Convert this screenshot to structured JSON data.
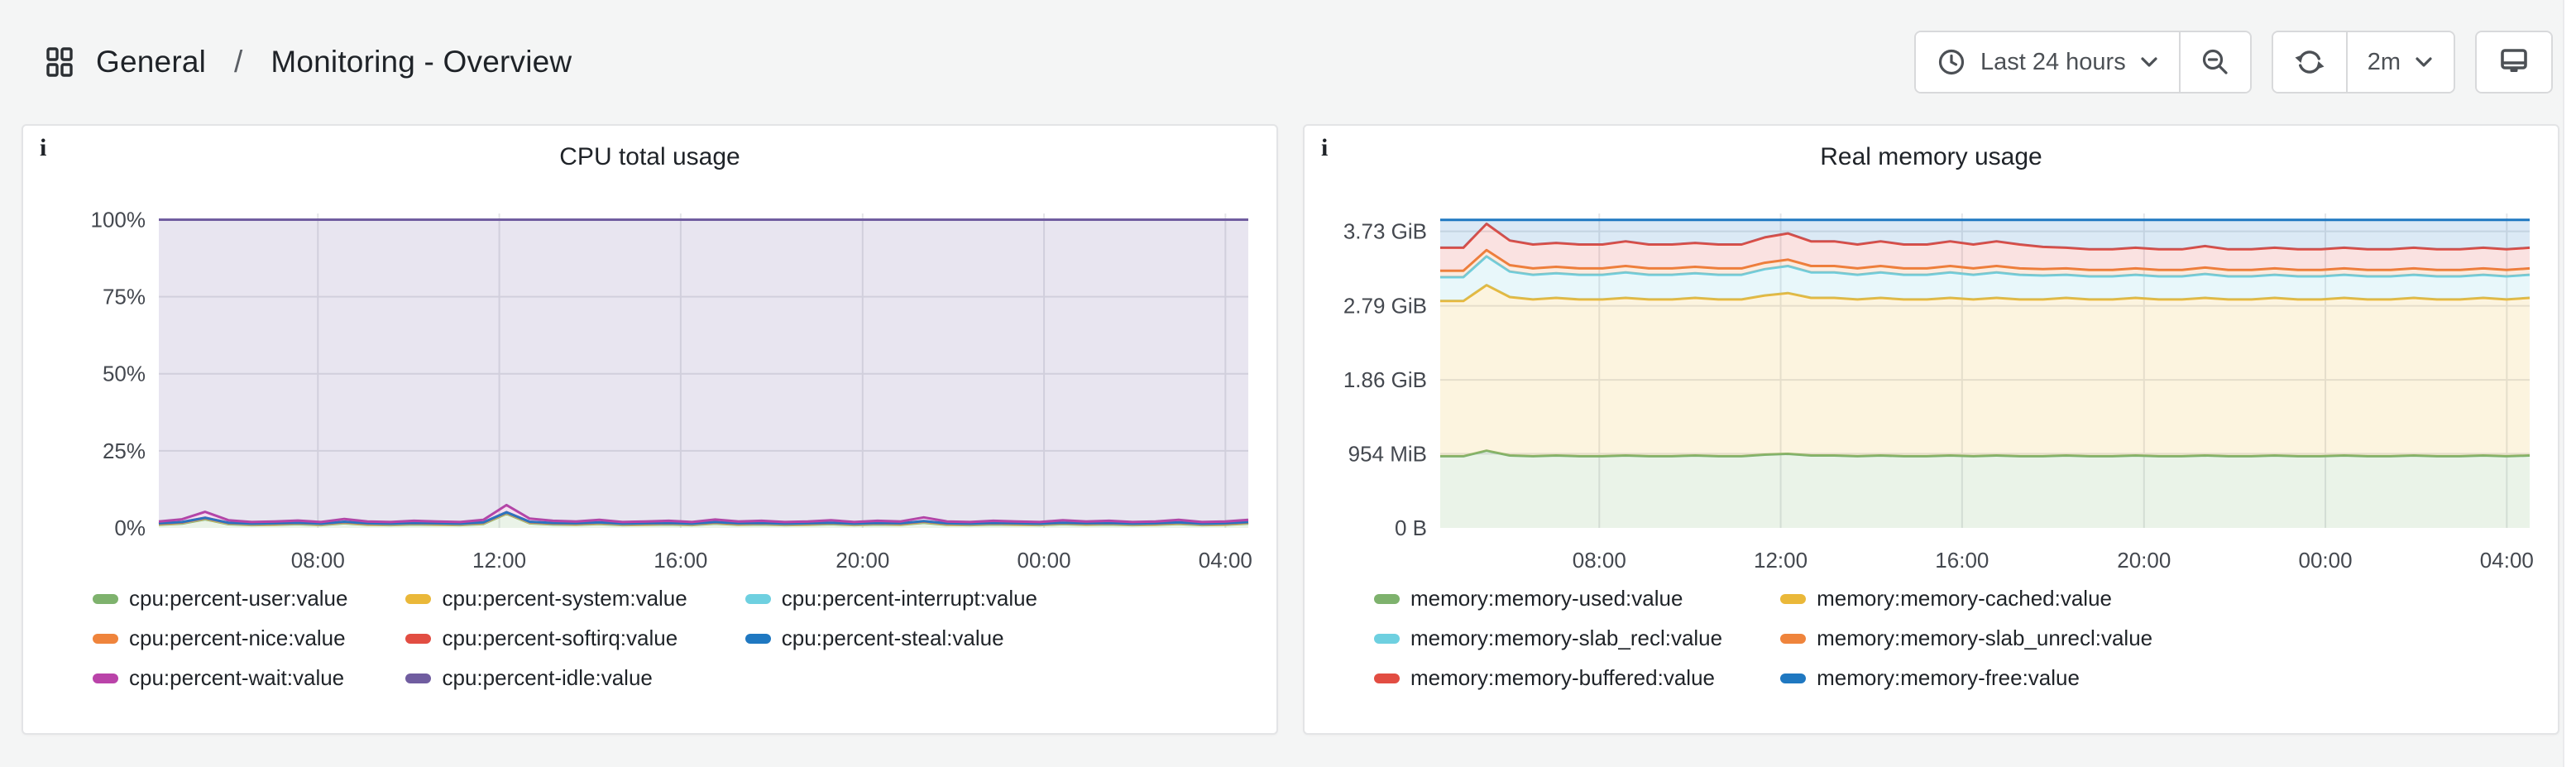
{
  "ui": {
    "info_glyph": "i"
  },
  "header": {
    "breadcrumb": {
      "folder": "General",
      "separator": "/",
      "page": "Monitoring - Overview",
      "icon": "apps-grid-icon"
    },
    "toolbar": {
      "time_range_label": "Last 24 hours",
      "time_range_icon": "clock-icon",
      "zoom_out_icon": "zoom-out-icon",
      "refresh_icon": "refresh-icon",
      "refresh_interval_label": "2m",
      "kiosk_icon": "monitor-icon",
      "chevron_icon": "chevron-down-icon"
    }
  },
  "colors": {
    "page_bg": "#f4f5f5",
    "panel_bg": "#ffffff",
    "panel_border": "#e3e4e6",
    "grid_line": "#e4e5e8",
    "tick_text": "#44484f"
  },
  "chart_data": [
    {
      "type": "area",
      "stacked": true,
      "title": "CPU total usage",
      "legend_position": "bottom",
      "legend_columns": 3,
      "grid": true,
      "y_max": 102,
      "y_ticks": [
        {
          "label": "0%",
          "v": 0
        },
        {
          "label": "25%",
          "v": 25
        },
        {
          "label": "50%",
          "v": 50
        },
        {
          "label": "75%",
          "v": 75
        },
        {
          "label": "100%",
          "v": 100
        }
      ],
      "x_ticks": [
        {
          "label": "08:00",
          "f": 0.146
        },
        {
          "label": "12:00",
          "f": 0.3125
        },
        {
          "label": "16:00",
          "f": 0.479
        },
        {
          "label": "20:00",
          "f": 0.646
        },
        {
          "label": "00:00",
          "f": 0.8125
        },
        {
          "label": "04:00",
          "f": 0.979
        }
      ],
      "series": [
        {
          "name": "cpu:percent-user:value",
          "color": "#7EB26D",
          "values": [
            1.0,
            1.4,
            2.8,
            1.2,
            0.9,
            1.0,
            1.2,
            0.9,
            1.5,
            1.0,
            0.9,
            1.1,
            1.0,
            0.9,
            1.3,
            4.6,
            1.5,
            1.1,
            1.0,
            1.3,
            0.9,
            1.0,
            1.1,
            0.9,
            1.4,
            1.0,
            1.1,
            0.9,
            1.0,
            1.2,
            0.9,
            1.1,
            1.0,
            1.7,
            1.0,
            0.9,
            1.1,
            1.0,
            0.9,
            1.2,
            1.0,
            1.1,
            0.9,
            1.0,
            1.3,
            0.9,
            1.0,
            1.4
          ]
        },
        {
          "name": "cpu:percent-system:value",
          "color": "#EAB839",
          "values": 0.15
        },
        {
          "name": "cpu:percent-interrupt:value",
          "color": "#6ED0E0",
          "values": 0.1
        },
        {
          "name": "cpu:percent-nice:value",
          "color": "#EF843C",
          "values": 0.1
        },
        {
          "name": "cpu:percent-softirq:value",
          "color": "#E24D42",
          "values": 0.1
        },
        {
          "name": "cpu:percent-steal:value",
          "color": "#1F78C1",
          "values": 0.05
        },
        {
          "name": "cpu:percent-wait:value",
          "color": "#BA43A9",
          "values": [
            0.6,
            0.9,
            1.9,
            0.8,
            0.5,
            0.6,
            0.7,
            0.5,
            0.9,
            0.6,
            0.5,
            0.7,
            0.6,
            0.5,
            0.8,
            2.3,
            1.0,
            0.7,
            0.6,
            0.8,
            0.5,
            0.6,
            0.7,
            0.5,
            0.8,
            0.6,
            0.7,
            0.5,
            0.6,
            0.8,
            0.5,
            0.7,
            0.6,
            1.2,
            0.6,
            0.5,
            0.7,
            0.6,
            0.5,
            0.8,
            0.6,
            0.7,
            0.5,
            0.6,
            0.8,
            0.5,
            0.6,
            0.7
          ]
        },
        {
          "name": "cpu:percent-idle:value",
          "color": "#705DA0",
          "remainder_to": 100
        }
      ]
    },
    {
      "type": "area",
      "stacked": true,
      "title": "Real memory usage",
      "legend_position": "bottom",
      "legend_columns": 2,
      "grid": true,
      "y_max": 3.95,
      "y_unit": "bytes (GiB)",
      "y_ticks": [
        {
          "label": "0 B",
          "v": 0
        },
        {
          "label": "954 MiB",
          "v": 0.9316
        },
        {
          "label": "1.86 GiB",
          "v": 1.86
        },
        {
          "label": "2.79 GiB",
          "v": 2.79
        },
        {
          "label": "3.73 GiB",
          "v": 3.7253
        }
      ],
      "x_ticks": [
        {
          "label": "08:00",
          "f": 0.146
        },
        {
          "label": "12:00",
          "f": 0.3125
        },
        {
          "label": "16:00",
          "f": 0.479
        },
        {
          "label": "20:00",
          "f": 0.646
        },
        {
          "label": "00:00",
          "f": 0.8125
        },
        {
          "label": "04:00",
          "f": 0.979
        }
      ],
      "series": [
        {
          "name": "memory:memory-used:value",
          "color": "#7EB26D",
          "values": [
            0.9,
            0.9,
            0.97,
            0.91,
            0.9,
            0.91,
            0.9,
            0.9,
            0.91,
            0.9,
            0.9,
            0.91,
            0.9,
            0.9,
            0.92,
            0.93,
            0.91,
            0.91,
            0.9,
            0.91,
            0.9,
            0.9,
            0.91,
            0.9,
            0.91,
            0.9,
            0.9,
            0.91,
            0.9,
            0.9,
            0.91,
            0.9,
            0.9,
            0.91,
            0.9,
            0.9,
            0.91,
            0.9,
            0.9,
            0.91,
            0.9,
            0.9,
            0.91,
            0.9,
            0.9,
            0.91,
            0.9,
            0.91
          ]
        },
        {
          "name": "memory:memory-cached:value",
          "color": "#EAB839",
          "values": [
            1.95,
            1.95,
            2.08,
            1.99,
            1.97,
            1.98,
            1.97,
            1.97,
            1.98,
            1.97,
            1.97,
            1.98,
            1.97,
            1.97,
            2.0,
            2.02,
            1.98,
            1.98,
            1.97,
            1.98,
            1.97,
            1.97,
            1.98,
            1.97,
            1.98,
            1.97,
            1.97,
            1.98,
            1.97,
            1.97,
            1.98,
            1.97,
            1.97,
            1.98,
            1.97,
            1.97,
            1.98,
            1.97,
            1.97,
            1.98,
            1.97,
            1.97,
            1.98,
            1.97,
            1.97,
            1.98,
            1.97,
            1.98
          ]
        },
        {
          "name": "memory:memory-slab_recl:value",
          "color": "#6ED0E0",
          "values": [
            0.3,
            0.3,
            0.36,
            0.32,
            0.31,
            0.31,
            0.31,
            0.31,
            0.32,
            0.31,
            0.31,
            0.31,
            0.31,
            0.31,
            0.33,
            0.34,
            0.32,
            0.32,
            0.31,
            0.32,
            0.31,
            0.31,
            0.32,
            0.31,
            0.32,
            0.31,
            0.3,
            0.29,
            0.29,
            0.29,
            0.29,
            0.29,
            0.29,
            0.3,
            0.29,
            0.29,
            0.29,
            0.29,
            0.29,
            0.29,
            0.29,
            0.29,
            0.29,
            0.29,
            0.29,
            0.29,
            0.29,
            0.29
          ]
        },
        {
          "name": "memory:memory-slab_unrecl:value",
          "color": "#EF843C",
          "values": 0.08
        },
        {
          "name": "memory:memory-buffered:value",
          "color": "#E24D42",
          "values": [
            0.29,
            0.29,
            0.33,
            0.31,
            0.3,
            0.3,
            0.3,
            0.3,
            0.31,
            0.3,
            0.3,
            0.3,
            0.3,
            0.3,
            0.32,
            0.33,
            0.31,
            0.31,
            0.3,
            0.31,
            0.3,
            0.3,
            0.31,
            0.3,
            0.31,
            0.3,
            0.28,
            0.26,
            0.26,
            0.26,
            0.26,
            0.26,
            0.26,
            0.27,
            0.26,
            0.26,
            0.26,
            0.26,
            0.26,
            0.26,
            0.26,
            0.26,
            0.26,
            0.26,
            0.26,
            0.26,
            0.26,
            0.26
          ]
        },
        {
          "name": "memory:memory-free:value",
          "color": "#1F78C1",
          "remainder_to": 3.87
        }
      ]
    }
  ]
}
